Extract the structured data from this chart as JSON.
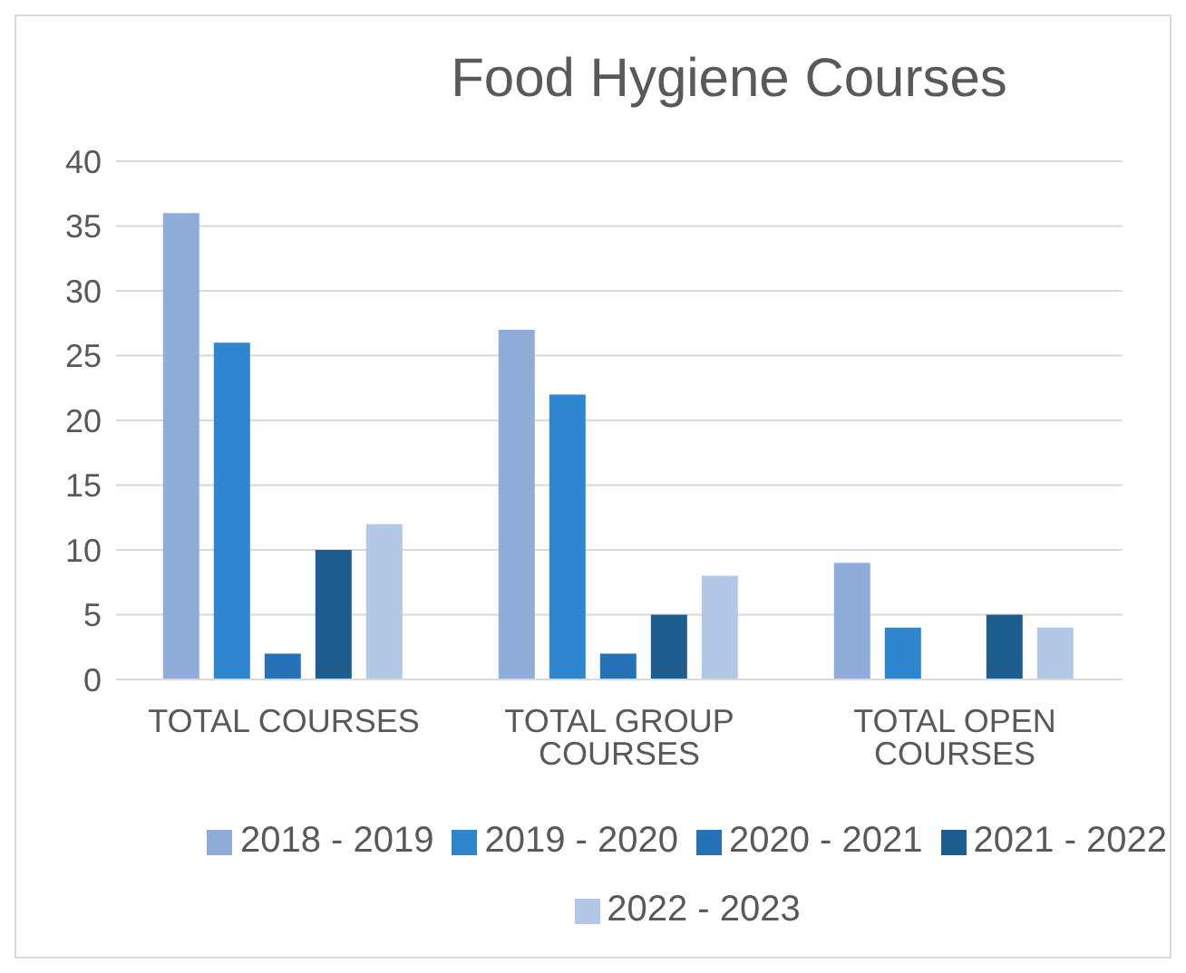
{
  "chart_data": {
    "type": "bar",
    "title": "Food Hygiene Courses",
    "categories": [
      "TOTAL COURSES",
      "TOTAL GROUP COURSES",
      "TOTAL OPEN COURSES"
    ],
    "series": [
      {
        "name": "2018 - 2019",
        "color": "#8eadd9",
        "values": [
          36,
          27,
          9
        ]
      },
      {
        "name": "2019 - 2020",
        "color": "#2e86cf",
        "values": [
          26,
          22,
          4
        ]
      },
      {
        "name": "2020 - 2021",
        "color": "#2772b6",
        "values": [
          2,
          2,
          0
        ]
      },
      {
        "name": "2021 - 2022",
        "color": "#1d5e8e",
        "values": [
          10,
          5,
          5
        ]
      },
      {
        "name": "2022 - 2023",
        "color": "#b3c8e6",
        "values": [
          12,
          8,
          4
        ]
      }
    ],
    "ylim": [
      0,
      40
    ],
    "yticks": [
      0,
      5,
      10,
      15,
      20,
      25,
      30,
      35,
      40
    ],
    "grid": "y",
    "legend": "bottom"
  }
}
